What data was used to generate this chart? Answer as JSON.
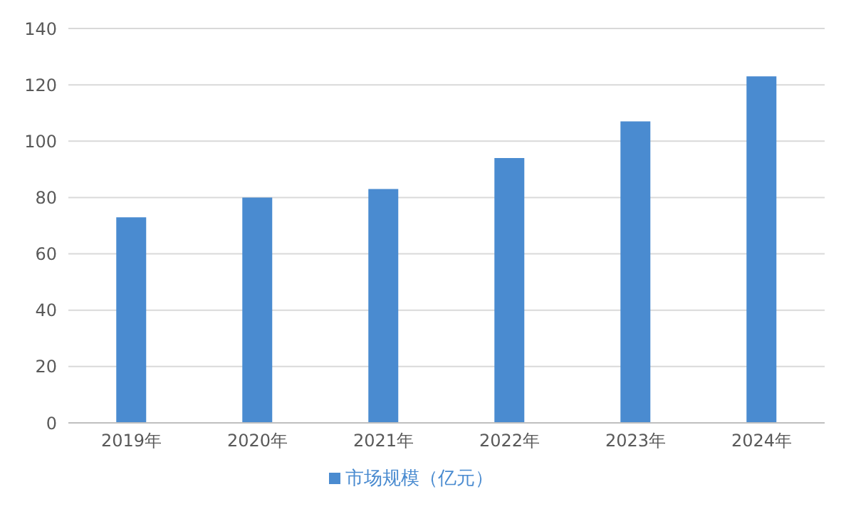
{
  "chart_data": {
    "type": "bar",
    "categories": [
      "2019年",
      "2020年",
      "2021年",
      "2022年",
      "2023年",
      "2024年"
    ],
    "series": [
      {
        "name": "市场规模（亿元）",
        "color": "#4a8bd0",
        "values": [
          73,
          80,
          83,
          94,
          107,
          123
        ]
      }
    ],
    "ylim": [
      0,
      140
    ],
    "yticks": [
      0,
      20,
      40,
      60,
      80,
      100,
      120,
      140
    ],
    "grid": "y",
    "legend": "bottom"
  }
}
